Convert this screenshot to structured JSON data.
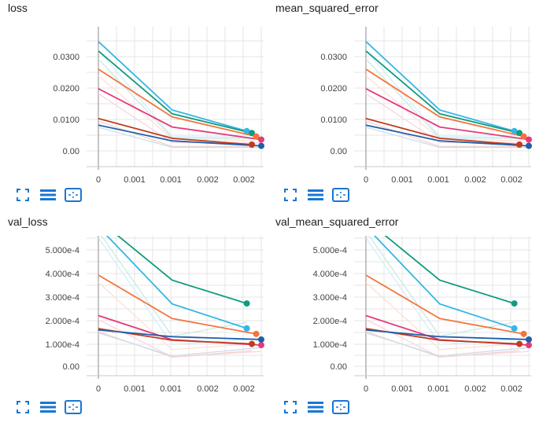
{
  "colors": {
    "cyan": "#35b6e5",
    "teal": "#119b7f",
    "orange": "#f2763f",
    "pink": "#e63a7a",
    "red": "#c23b1f",
    "blue": "#1e5fa8",
    "accent_icon": "#1976d2"
  },
  "toolbar": {
    "icons": [
      "expand-icon",
      "data-list-icon",
      "fit-domain-icon"
    ]
  },
  "charts": [
    {
      "title": "loss",
      "y_ticks": [
        "0.0300",
        "0.0200",
        "0.0100",
        "0.00"
      ],
      "x_ticks": [
        "0",
        "0.001",
        "0.001",
        "0.002",
        "0.002"
      ]
    },
    {
      "title": "mean_squared_error",
      "y_ticks": [
        "0.0300",
        "0.0200",
        "0.0100",
        "0.00"
      ],
      "x_ticks": [
        "0",
        "0.001",
        "0.001",
        "0.002",
        "0.002"
      ]
    },
    {
      "title": "val_loss",
      "y_ticks": [
        "5.000e-4",
        "4.000e-4",
        "3.000e-4",
        "2.000e-4",
        "1.000e-4",
        "0.00"
      ],
      "x_ticks": [
        "0",
        "0.001",
        "0.001",
        "0.002",
        "0.002"
      ]
    },
    {
      "title": "val_mean_squared_error",
      "y_ticks": [
        "5.000e-4",
        "4.000e-4",
        "3.000e-4",
        "2.000e-4",
        "1.000e-4",
        "0.00"
      ],
      "x_ticks": [
        "0",
        "0.001",
        "0.001",
        "0.002",
        "0.002"
      ]
    }
  ],
  "chart_data": [
    {
      "type": "line",
      "title": "loss",
      "xlabel": "",
      "ylabel": "",
      "x_ticks": [
        "0",
        "0.001",
        "0.001",
        "0.002",
        "0.002"
      ],
      "ylim": [
        -0.005,
        0.036
      ],
      "series": [
        {
          "color": "#35b6e5",
          "points": [
            [
              0,
              0.0348
            ],
            [
              0.00102,
              0.013
            ],
            [
              0.00205,
              0.0063
            ]
          ]
        },
        {
          "color": "#119b7f",
          "points": [
            [
              0,
              0.0318
            ],
            [
              0.00102,
              0.0118
            ],
            [
              0.00212,
              0.0057
            ]
          ]
        },
        {
          "color": "#f2763f",
          "points": [
            [
              0,
              0.026
            ],
            [
              0.00102,
              0.0108
            ],
            [
              0.00218,
              0.0046
            ]
          ]
        },
        {
          "color": "#e63a7a",
          "points": [
            [
              0,
              0.0198
            ],
            [
              0.00102,
              0.0076
            ],
            [
              0.00225,
              0.0036
            ]
          ]
        },
        {
          "color": "#c23b1f",
          "points": [
            [
              0,
              0.0103
            ],
            [
              0.00102,
              0.004
            ],
            [
              0.00212,
              0.002
            ]
          ]
        },
        {
          "color": "#1e5fa8",
          "points": [
            [
              0,
              0.0082
            ],
            [
              0.00102,
              0.0032
            ],
            [
              0.00225,
              0.0016
            ]
          ]
        }
      ]
    },
    {
      "type": "line",
      "title": "mean_squared_error",
      "xlabel": "",
      "ylabel": "",
      "x_ticks": [
        "0",
        "0.001",
        "0.001",
        "0.002",
        "0.002"
      ],
      "ylim": [
        -0.005,
        0.036
      ],
      "series": [
        {
          "color": "#35b6e5",
          "points": [
            [
              0,
              0.0348
            ],
            [
              0.00102,
              0.013
            ],
            [
              0.00205,
              0.0063
            ]
          ]
        },
        {
          "color": "#119b7f",
          "points": [
            [
              0,
              0.0318
            ],
            [
              0.00102,
              0.0118
            ],
            [
              0.00212,
              0.0057
            ]
          ]
        },
        {
          "color": "#f2763f",
          "points": [
            [
              0,
              0.026
            ],
            [
              0.00102,
              0.0108
            ],
            [
              0.00218,
              0.0046
            ]
          ]
        },
        {
          "color": "#e63a7a",
          "points": [
            [
              0,
              0.0198
            ],
            [
              0.00102,
              0.0076
            ],
            [
              0.00225,
              0.0036
            ]
          ]
        },
        {
          "color": "#c23b1f",
          "points": [
            [
              0,
              0.0103
            ],
            [
              0.00102,
              0.004
            ],
            [
              0.00212,
              0.002
            ]
          ]
        },
        {
          "color": "#1e5fa8",
          "points": [
            [
              0,
              0.0082
            ],
            [
              0.00102,
              0.0032
            ],
            [
              0.00225,
              0.0016
            ]
          ]
        }
      ]
    },
    {
      "type": "line",
      "title": "val_loss",
      "xlabel": "",
      "ylabel": "",
      "x_ticks": [
        "0",
        "0.001",
        "0.001",
        "0.002",
        "0.002"
      ],
      "ylim": [
        -3e-05,
        0.00056
      ],
      "series": [
        {
          "color": "#119b7f",
          "points": [
            [
              0,
              0.00063
            ],
            [
              0.00102,
              0.00037
            ],
            [
              0.00205,
              0.00027
            ]
          ]
        },
        {
          "color": "#35b6e5",
          "points": [
            [
              0,
              0.0006
            ],
            [
              0.00102,
              0.000268
            ],
            [
              0.00205,
              0.000163
            ]
          ]
        },
        {
          "color": "#f2763f",
          "points": [
            [
              0,
              0.000392
            ],
            [
              0.00102,
              0.000205
            ],
            [
              0.00218,
              0.000139
            ]
          ]
        },
        {
          "color": "#e63a7a",
          "points": [
            [
              0,
              0.000218
            ],
            [
              0.00102,
              0.000114
            ],
            [
              0.00225,
              9.1e-05
            ]
          ]
        },
        {
          "color": "#c23b1f",
          "points": [
            [
              0,
              0.000162
            ],
            [
              0.00102,
              0.000112
            ],
            [
              0.00212,
              9.6e-05
            ]
          ]
        },
        {
          "color": "#1e5fa8",
          "points": [
            [
              0,
              0.000156
            ],
            [
              0.00102,
              0.000127
            ],
            [
              0.00225,
              0.000115
            ]
          ]
        }
      ]
    },
    {
      "type": "line",
      "title": "val_mean_squared_error",
      "xlabel": "",
      "ylabel": "",
      "x_ticks": [
        "0",
        "0.001",
        "0.001",
        "0.002",
        "0.002"
      ],
      "ylim": [
        -3e-05,
        0.00056
      ],
      "series": [
        {
          "color": "#119b7f",
          "points": [
            [
              0,
              0.00063
            ],
            [
              0.00102,
              0.00037
            ],
            [
              0.00205,
              0.00027
            ]
          ]
        },
        {
          "color": "#35b6e5",
          "points": [
            [
              0,
              0.0006
            ],
            [
              0.00102,
              0.000268
            ],
            [
              0.00205,
              0.000163
            ]
          ]
        },
        {
          "color": "#f2763f",
          "points": [
            [
              0,
              0.000392
            ],
            [
              0.00102,
              0.000205
            ],
            [
              0.00218,
              0.000139
            ]
          ]
        },
        {
          "color": "#e63a7a",
          "points": [
            [
              0,
              0.000218
            ],
            [
              0.00102,
              0.000114
            ],
            [
              0.00225,
              9.1e-05
            ]
          ]
        },
        {
          "color": "#c23b1f",
          "points": [
            [
              0,
              0.000162
            ],
            [
              0.00102,
              0.000112
            ],
            [
              0.00212,
              9.6e-05
            ]
          ]
        },
        {
          "color": "#1e5fa8",
          "points": [
            [
              0,
              0.000156
            ],
            [
              0.00102,
              0.000127
            ],
            [
              0.00225,
              0.000115
            ]
          ]
        }
      ]
    }
  ]
}
